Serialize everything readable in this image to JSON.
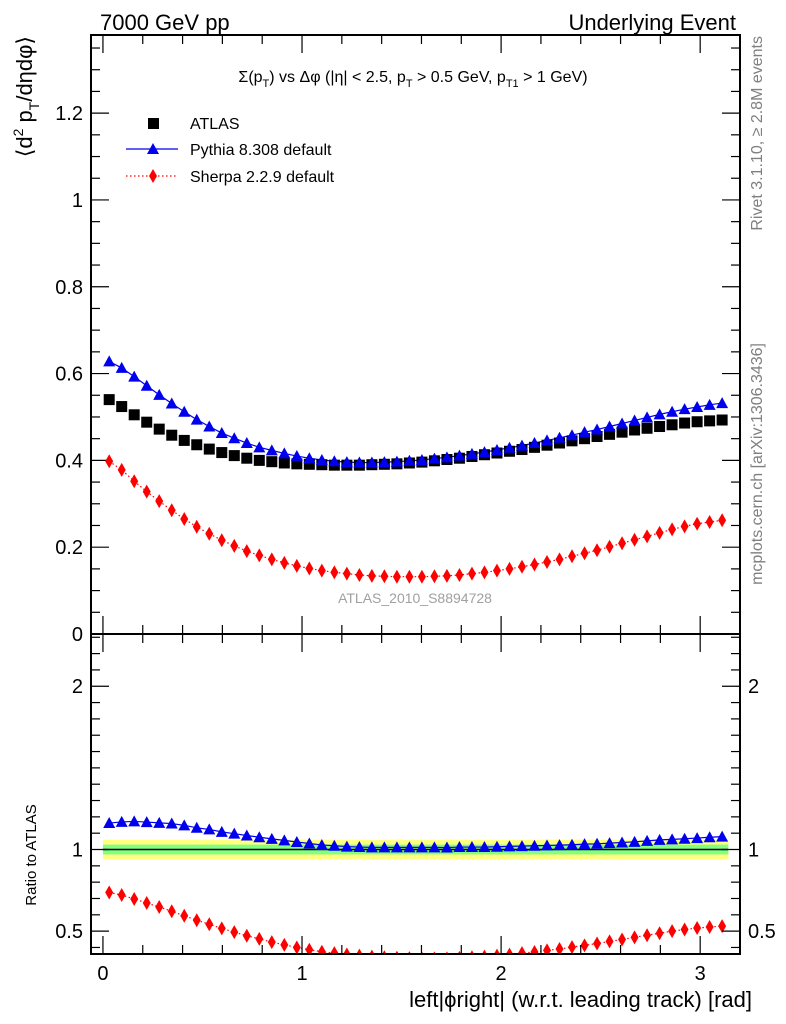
{
  "header": {
    "left": "7000 GeV pp",
    "right": "Underlying Event"
  },
  "side_labels": {
    "rivet": "Rivet 3.1.10, ≥ 2.8M events",
    "mcplots": "mcplots.cern.ch [arXiv:1306.3436]"
  },
  "colors": {
    "atlas": "#000000",
    "pythia": "#0000ee",
    "sherpa": "#ff0000",
    "band_outer": "#ffff80",
    "band_inner": "#80ff80",
    "watermark": "#a0a0a0"
  },
  "chart_data": [
    {
      "type": "scatter",
      "panel": "main",
      "title": "Σ(p_T) vs Δφ (|η| < 2.5, p_T > 0.5 GeV, p_T1 > 1 GeV)",
      "title_parts": {
        "a": "Σ(p",
        "a_sub": "T",
        "b": ") vs Δφ (|η| < 2.5, p",
        "b_sub": "T",
        "c": " > 0.5 GeV, p",
        "c_sub": "T1",
        "d": " > 1 GeV)"
      },
      "ylabel_parts": {
        "a": "⟨d",
        "a_sup": "2",
        "b": " p",
        "b_sub": "T",
        "c": "/dηdφ⟩"
      },
      "watermark": "ATLAS_2010_S8894728",
      "xlim": [
        -0.06,
        3.2
      ],
      "ylim": [
        0,
        1.38
      ],
      "yticks": [
        0,
        0.2,
        0.4,
        0.6,
        0.8,
        1,
        1.2
      ],
      "ytick_labels": [
        "0",
        "0.2",
        "0.4",
        "0.6",
        "0.8",
        "1",
        "1.2"
      ],
      "x": [
        0.0314,
        0.0942,
        0.157,
        0.2199,
        0.2827,
        0.3456,
        0.4084,
        0.4712,
        0.5341,
        0.5969,
        0.6597,
        0.7226,
        0.7854,
        0.8482,
        0.9111,
        0.9739,
        1.0367,
        1.0996,
        1.1624,
        1.2252,
        1.2881,
        1.3509,
        1.4137,
        1.4766,
        1.5394,
        1.6022,
        1.6651,
        1.7279,
        1.7907,
        1.8536,
        1.9164,
        1.9792,
        2.0421,
        2.1049,
        2.1677,
        2.2306,
        2.2934,
        2.3562,
        2.4191,
        2.4819,
        2.5447,
        2.6076,
        2.6704,
        2.7332,
        2.7961,
        2.8589,
        2.9217,
        2.9846,
        3.0474,
        3.1102
      ],
      "legend": [
        {
          "name": "ATLAS",
          "marker": "square"
        },
        {
          "name": "Pythia 8.308 default",
          "marker": "triangle"
        },
        {
          "name": "Sherpa 2.2.9 default",
          "marker": "diamond"
        }
      ],
      "series": [
        {
          "name": "ATLAS",
          "values": [
            0.54,
            0.524,
            0.505,
            0.488,
            0.472,
            0.458,
            0.446,
            0.436,
            0.426,
            0.418,
            0.411,
            0.405,
            0.4,
            0.397,
            0.394,
            0.392,
            0.391,
            0.39,
            0.389,
            0.389,
            0.389,
            0.39,
            0.391,
            0.392,
            0.394,
            0.396,
            0.399,
            0.402,
            0.405,
            0.409,
            0.413,
            0.417,
            0.421,
            0.425,
            0.43,
            0.435,
            0.44,
            0.445,
            0.45,
            0.455,
            0.46,
            0.465,
            0.47,
            0.474,
            0.478,
            0.482,
            0.486,
            0.489,
            0.491,
            0.493
          ]
        },
        {
          "name": "Pythia 8.308 default",
          "values": [
            0.628,
            0.613,
            0.593,
            0.572,
            0.551,
            0.531,
            0.512,
            0.494,
            0.478,
            0.463,
            0.451,
            0.44,
            0.43,
            0.423,
            0.416,
            0.41,
            0.405,
            0.401,
            0.398,
            0.396,
            0.395,
            0.395,
            0.396,
            0.397,
            0.399,
            0.401,
            0.404,
            0.407,
            0.411,
            0.415,
            0.419,
            0.424,
            0.429,
            0.434,
            0.44,
            0.446,
            0.452,
            0.458,
            0.465,
            0.471,
            0.478,
            0.485,
            0.492,
            0.499,
            0.506,
            0.512,
            0.518,
            0.523,
            0.528,
            0.532
          ]
        },
        {
          "name": "Sherpa 2.2.9 default",
          "values": [
            0.398,
            0.378,
            0.352,
            0.328,
            0.306,
            0.285,
            0.265,
            0.247,
            0.231,
            0.216,
            0.203,
            0.191,
            0.181,
            0.172,
            0.164,
            0.157,
            0.151,
            0.146,
            0.142,
            0.139,
            0.136,
            0.134,
            0.133,
            0.132,
            0.132,
            0.132,
            0.133,
            0.134,
            0.136,
            0.139,
            0.142,
            0.146,
            0.15,
            0.155,
            0.16,
            0.166,
            0.172,
            0.179,
            0.186,
            0.193,
            0.201,
            0.209,
            0.217,
            0.225,
            0.233,
            0.241,
            0.248,
            0.254,
            0.258,
            0.262
          ]
        }
      ]
    },
    {
      "type": "scatter",
      "panel": "ratio",
      "ylabel": "Ratio to ATLAS",
      "xlabel": "left|ϕright| (w.r.t. leading track) [rad]",
      "xlim": [
        -0.06,
        3.2
      ],
      "ylim": [
        0.36,
        2.32
      ],
      "xticks": [
        0,
        1,
        2,
        3
      ],
      "xtick_labels": [
        "0",
        "1",
        "2",
        "3"
      ],
      "yticks": [
        0.5,
        1,
        2
      ],
      "ytick_labels": [
        "0.5",
        "1",
        "2"
      ],
      "band": {
        "outer": [
          0.94,
          1.06
        ],
        "inner": [
          0.97,
          1.03
        ]
      },
      "series": [
        {
          "name": "Pythia 8.308 default",
          "values": [
            1.162,
            1.169,
            1.172,
            1.168,
            1.163,
            1.159,
            1.148,
            1.133,
            1.123,
            1.108,
            1.097,
            1.086,
            1.075,
            1.065,
            1.056,
            1.046,
            1.037,
            1.028,
            1.023,
            1.018,
            1.015,
            1.013,
            1.013,
            1.013,
            1.013,
            1.013,
            1.013,
            1.012,
            1.015,
            1.015,
            1.015,
            1.017,
            1.019,
            1.021,
            1.023,
            1.025,
            1.027,
            1.029,
            1.033,
            1.035,
            1.039,
            1.043,
            1.047,
            1.053,
            1.059,
            1.062,
            1.066,
            1.07,
            1.075,
            1.079
          ]
        },
        {
          "name": "Sherpa 2.2.9 default",
          "values": [
            0.737,
            0.721,
            0.697,
            0.672,
            0.648,
            0.622,
            0.594,
            0.567,
            0.542,
            0.517,
            0.494,
            0.472,
            0.453,
            0.433,
            0.416,
            0.4,
            0.386,
            0.374,
            0.365,
            0.357,
            0.35,
            0.344,
            0.34,
            0.337,
            0.335,
            0.333,
            0.333,
            0.333,
            0.336,
            0.34,
            0.344,
            0.35,
            0.356,
            0.365,
            0.372,
            0.382,
            0.391,
            0.402,
            0.413,
            0.424,
            0.437,
            0.449,
            0.462,
            0.475,
            0.487,
            0.5,
            0.51,
            0.519,
            0.525,
            0.531
          ]
        }
      ]
    }
  ]
}
